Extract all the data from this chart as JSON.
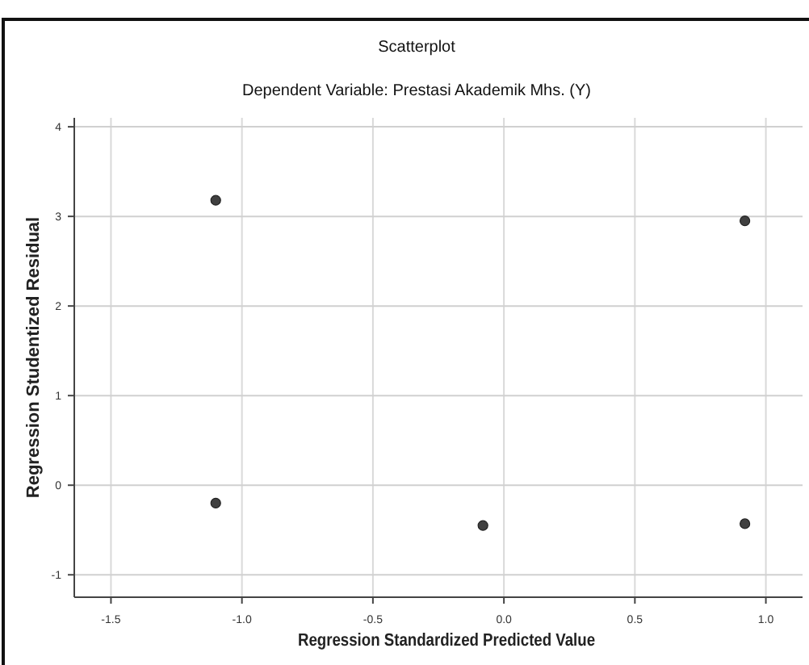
{
  "chart_data": {
    "type": "scatter",
    "title": "Scatterplot",
    "subtitle": "Dependent Variable: Prestasi Akademik Mhs. (Y)",
    "xlabel": "Regression Standardized Predicted Value",
    "ylabel": "Regression Studentized Residual",
    "x": [
      -1.1,
      0.92,
      -1.1,
      -0.08,
      0.92
    ],
    "series": [
      {
        "color": "#404040",
        "values": [
          3.18,
          2.95,
          -0.2,
          -0.45,
          -0.43
        ]
      }
    ],
    "xlim": [
      -1.64,
      1.14
    ],
    "ylim": [
      -1.25,
      4.1
    ],
    "xticks": [
      {
        "value": -1.5,
        "label": "-1.5"
      },
      {
        "value": -1,
        "label": "-1.0"
      },
      {
        "value": -0.5,
        "label": "-0.5"
      },
      {
        "value": 0,
        "label": "0.0"
      },
      {
        "value": 0.5,
        "label": "0.5"
      },
      {
        "value": 1,
        "label": "1.0"
      }
    ],
    "yticks": [
      -1,
      0,
      1,
      2,
      3,
      4
    ],
    "grid": true,
    "marker": "circle"
  }
}
